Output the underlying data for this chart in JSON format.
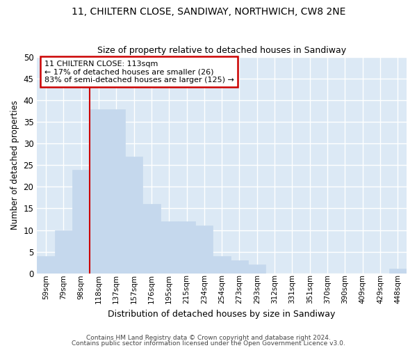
{
  "title_line1": "11, CHILTERN CLOSE, SANDIWAY, NORTHWICH, CW8 2NE",
  "title_line2": "Size of property relative to detached houses in Sandiway",
  "xlabel": "Distribution of detached houses by size in Sandiway",
  "ylabel": "Number of detached properties",
  "bar_values": [
    4,
    10,
    24,
    38,
    38,
    27,
    16,
    12,
    12,
    11,
    4,
    3,
    2,
    0,
    0,
    0,
    0,
    0,
    0,
    0,
    1
  ],
  "bar_labels": [
    "59sqm",
    "79sqm",
    "98sqm",
    "118sqm",
    "137sqm",
    "157sqm",
    "176sqm",
    "195sqm",
    "215sqm",
    "234sqm",
    "254sqm",
    "273sqm",
    "293sqm",
    "312sqm",
    "331sqm",
    "351sqm",
    "370sqm",
    "390sqm",
    "409sqm",
    "429sqm",
    "448sqm"
  ],
  "bar_color": "#c5d8ed",
  "bar_edge_color": "#c5d8ed",
  "property_label": "11 CHILTERN CLOSE: 113sqm",
  "annotation_line1": "← 17% of detached houses are smaller (26)",
  "annotation_line2": "83% of semi-detached houses are larger (125) →",
  "annotation_box_color": "#ffffff",
  "annotation_box_edge": "#cc0000",
  "vline_color": "#cc0000",
  "vline_x_index": 2.5,
  "ylim": [
    0,
    50
  ],
  "yticks": [
    0,
    5,
    10,
    15,
    20,
    25,
    30,
    35,
    40,
    45,
    50
  ],
  "background_color": "#dce9f5",
  "grid_color": "#ffffff",
  "fig_background": "#ffffff",
  "footer_line1": "Contains HM Land Registry data © Crown copyright and database right 2024.",
  "footer_line2": "Contains public sector information licensed under the Open Government Licence v3.0."
}
